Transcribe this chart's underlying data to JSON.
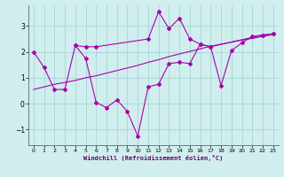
{
  "background_color": "#d0eeee",
  "grid_color": "#a8d4d4",
  "line_color": "#aa00aa",
  "xlabel": "Windchill (Refroidissement éolien,°C)",
  "xlim": [
    -0.5,
    23.5
  ],
  "ylim": [
    -1.6,
    3.8
  ],
  "yticks": [
    -1,
    0,
    1,
    2,
    3
  ],
  "xticks": [
    0,
    1,
    2,
    3,
    4,
    5,
    6,
    7,
    8,
    9,
    10,
    11,
    12,
    13,
    14,
    15,
    16,
    17,
    18,
    19,
    20,
    21,
    22,
    23
  ],
  "s1_x": [
    0,
    1,
    2,
    3,
    4,
    5,
    6,
    7,
    8,
    9,
    10,
    11,
    12,
    13,
    14,
    15,
    16,
    17,
    18,
    19,
    20,
    21,
    22,
    23
  ],
  "s1_y": [
    2.0,
    1.4,
    0.55,
    0.55,
    2.25,
    1.75,
    0.05,
    -0.15,
    0.15,
    -0.3,
    -1.25,
    0.65,
    0.75,
    1.55,
    1.6,
    1.55,
    2.3,
    2.2,
    0.7,
    2.05,
    2.35,
    2.6,
    2.65,
    2.7
  ],
  "s2_x": [
    4,
    5,
    6,
    11,
    12,
    13,
    14,
    15,
    16,
    17,
    22,
    23
  ],
  "s2_y": [
    2.25,
    2.2,
    2.2,
    2.5,
    3.55,
    2.9,
    3.3,
    2.5,
    2.3,
    2.2,
    2.65,
    2.7
  ],
  "s3_x": [
    0,
    1,
    2,
    3,
    4,
    5,
    6,
    7,
    8,
    9,
    10,
    11,
    12,
    13,
    14,
    15,
    16,
    17,
    18,
    19,
    20,
    21,
    22,
    23
  ],
  "s3_y": [
    0.55,
    0.65,
    0.75,
    0.82,
    0.9,
    1.0,
    1.08,
    1.18,
    1.28,
    1.38,
    1.48,
    1.6,
    1.7,
    1.82,
    1.92,
    2.02,
    2.12,
    2.22,
    2.3,
    2.38,
    2.46,
    2.52,
    2.6,
    2.67
  ]
}
